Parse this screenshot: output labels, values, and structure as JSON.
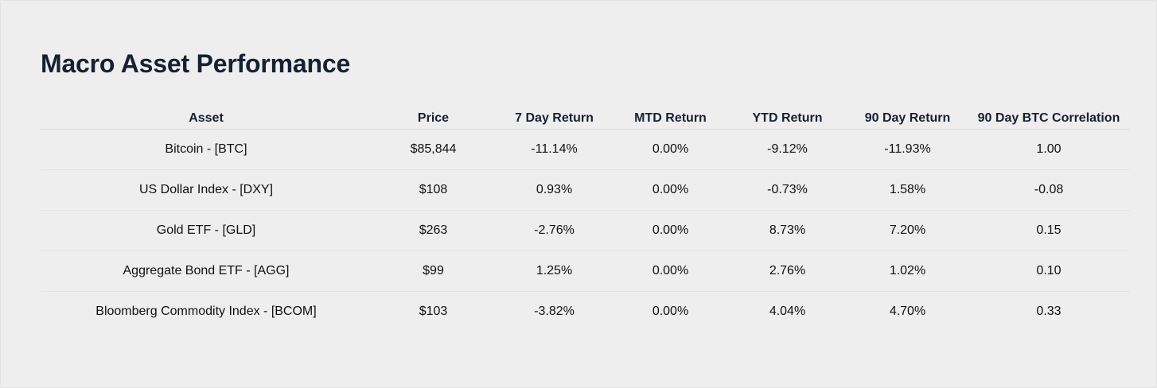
{
  "title": "Macro Asset Performance",
  "colors": {
    "negative": "#e01e1e",
    "positive": "#1a8a1a",
    "neutral": "#111111",
    "heading": "#172033",
    "background": "#eeeeee"
  },
  "table": {
    "columns": [
      "Asset",
      "Price",
      "7 Day Return",
      "MTD Return",
      "YTD Return",
      "90 Day Return",
      "90 Day BTC Correlation"
    ],
    "rows": [
      {
        "cells": [
          "Bitcoin - [BTC]",
          "$85,844",
          "-11.14%",
          "0.00%",
          "-9.12%",
          "-11.93%",
          "1.00"
        ],
        "tones": [
          "neu",
          "neu",
          "neg",
          "neu",
          "neg",
          "neg",
          "pos"
        ]
      },
      {
        "cells": [
          "US Dollar Index - [DXY]",
          "$108",
          "0.93%",
          "0.00%",
          "-0.73%",
          "1.58%",
          "-0.08"
        ],
        "tones": [
          "neu",
          "neu",
          "pos",
          "neu",
          "neg",
          "pos",
          "neg"
        ]
      },
      {
        "cells": [
          "Gold ETF - [GLD]",
          "$263",
          "-2.76%",
          "0.00%",
          "8.73%",
          "7.20%",
          "0.15"
        ],
        "tones": [
          "neu",
          "neu",
          "neg",
          "neu",
          "pos",
          "pos",
          "pos"
        ]
      },
      {
        "cells": [
          "Aggregate Bond ETF - [AGG]",
          "$99",
          "1.25%",
          "0.00%",
          "2.76%",
          "1.02%",
          "0.10"
        ],
        "tones": [
          "neu",
          "neu",
          "pos",
          "neu",
          "pos",
          "pos",
          "pos"
        ]
      },
      {
        "cells": [
          "Bloomberg Commodity Index - [BCOM]",
          "$103",
          "-3.82%",
          "0.00%",
          "4.04%",
          "4.70%",
          "0.33"
        ],
        "tones": [
          "neu",
          "neu",
          "neg",
          "neu",
          "pos",
          "pos",
          "pos"
        ]
      }
    ]
  }
}
